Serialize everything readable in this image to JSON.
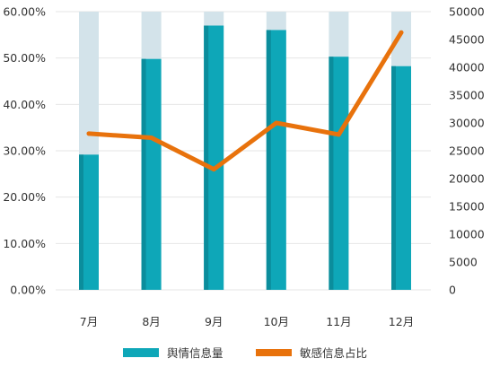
{
  "chart_data": {
    "type": "bar",
    "categories": [
      "7月",
      "8月",
      "9月",
      "10月",
      "11月",
      "12月"
    ],
    "series": [
      {
        "name": "舆情信息量",
        "type": "bar",
        "axis": "right",
        "values": [
          24300,
          41500,
          47500,
          46700,
          41900,
          40200
        ],
        "color": "#0ea7b8",
        "shade_color": "#0b8d9c"
      },
      {
        "name": "敏感信息占比",
        "type": "line",
        "axis": "left",
        "values": [
          0.337,
          0.328,
          0.26,
          0.36,
          0.335,
          0.555
        ],
        "color": "#e8720c"
      }
    ],
    "bar_background": {
      "color": "#d3e3ea",
      "value": 50000
    },
    "y_left": {
      "ylim": [
        0,
        0.6
      ],
      "ticks": [
        0,
        0.1,
        0.2,
        0.3,
        0.4,
        0.5,
        0.6
      ],
      "tick_labels": [
        "0.00%",
        "10.00%",
        "20.00%",
        "30.00%",
        "40.00%",
        "50.00%",
        "60.00%"
      ]
    },
    "y_right": {
      "ylim": [
        0,
        50000
      ],
      "ticks": [
        0,
        5000,
        10000,
        15000,
        20000,
        25000,
        30000,
        35000,
        40000,
        45000,
        50000
      ],
      "tick_labels": [
        "0",
        "5000",
        "10000",
        "15000",
        "20000",
        "25000",
        "30000",
        "35000",
        "40000",
        "45000",
        "50000"
      ]
    },
    "grid": true,
    "grid_color": "#e6e6e6",
    "legend": "bottom",
    "legend_labels": [
      "舆情信息量",
      "敏感信息占比"
    ]
  }
}
